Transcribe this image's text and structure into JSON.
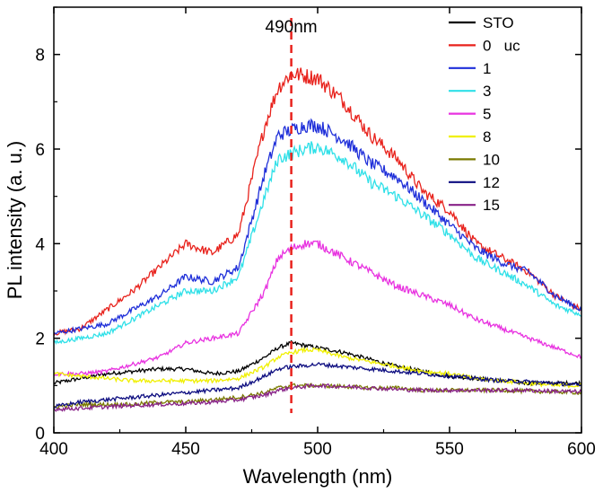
{
  "chart_data": {
    "type": "line",
    "title": "",
    "xlabel": "Wavelength (nm)",
    "ylabel": "PL intensity (a. u.)",
    "xlim": [
      400,
      600
    ],
    "ylim": [
      0,
      9
    ],
    "xticks": [
      400,
      450,
      500,
      550,
      600
    ],
    "yticks": [
      0,
      2,
      4,
      6,
      8
    ],
    "grid": false,
    "legend_position": "top-right",
    "annotation": {
      "label": "490nm",
      "x": 490,
      "color": "#e8221c"
    },
    "x": [
      400,
      410,
      420,
      430,
      440,
      450,
      460,
      470,
      480,
      485,
      490,
      495,
      500,
      510,
      520,
      530,
      540,
      550,
      560,
      570,
      580,
      590,
      600
    ],
    "series": [
      {
        "name": "STO",
        "color": "#000000",
        "values": [
          1.05,
          1.15,
          1.25,
          1.3,
          1.35,
          1.35,
          1.25,
          1.3,
          1.6,
          1.8,
          1.9,
          1.85,
          1.8,
          1.7,
          1.55,
          1.4,
          1.3,
          1.2,
          1.15,
          1.1,
          1.05,
          1.05,
          1.05
        ]
      },
      {
        "name": "0   uc",
        "color": "#e8221c",
        "values": [
          2.1,
          2.2,
          2.6,
          3.0,
          3.5,
          4.0,
          3.8,
          4.2,
          6.5,
          7.3,
          7.6,
          7.55,
          7.5,
          7.0,
          6.3,
          5.8,
          5.1,
          4.7,
          4.0,
          3.7,
          3.4,
          2.9,
          2.6
        ]
      },
      {
        "name": "1",
        "color": "#1f2fd9",
        "values": [
          2.1,
          2.2,
          2.3,
          2.6,
          2.9,
          3.3,
          3.2,
          3.5,
          5.5,
          6.3,
          6.4,
          6.5,
          6.5,
          6.2,
          5.7,
          5.4,
          4.9,
          4.4,
          3.9,
          3.6,
          3.4,
          2.9,
          2.6
        ]
      },
      {
        "name": "3",
        "color": "#2fe0e8",
        "values": [
          1.9,
          2.0,
          2.1,
          2.4,
          2.7,
          3.0,
          3.0,
          3.3,
          5.0,
          5.8,
          5.9,
          6.0,
          6.05,
          5.8,
          5.3,
          5.0,
          4.6,
          4.2,
          3.7,
          3.4,
          3.1,
          2.7,
          2.5
        ]
      },
      {
        "name": "5",
        "color": "#e832e0",
        "values": [
          1.25,
          1.25,
          1.3,
          1.45,
          1.6,
          1.9,
          2.0,
          2.1,
          3.0,
          3.7,
          3.9,
          4.0,
          4.0,
          3.7,
          3.4,
          3.1,
          2.9,
          2.7,
          2.4,
          2.2,
          2.0,
          1.8,
          1.6
        ]
      },
      {
        "name": "8",
        "color": "#f0f000",
        "values": [
          1.25,
          1.2,
          1.15,
          1.1,
          1.1,
          1.1,
          1.1,
          1.15,
          1.4,
          1.6,
          1.7,
          1.75,
          1.75,
          1.6,
          1.5,
          1.4,
          1.3,
          1.25,
          1.15,
          1.1,
          1.05,
          1.0,
          1.0
        ]
      },
      {
        "name": "10",
        "color": "#7a7a00",
        "values": [
          0.55,
          0.6,
          0.6,
          0.6,
          0.65,
          0.65,
          0.7,
          0.75,
          0.85,
          0.95,
          1.0,
          1.0,
          1.0,
          0.98,
          0.95,
          0.95,
          0.9,
          0.9,
          0.9,
          0.9,
          0.88,
          0.87,
          0.85
        ]
      },
      {
        "name": "12",
        "color": "#0d0d80",
        "values": [
          0.55,
          0.65,
          0.7,
          0.75,
          0.8,
          0.85,
          0.9,
          0.95,
          1.2,
          1.35,
          1.4,
          1.42,
          1.45,
          1.4,
          1.35,
          1.3,
          1.25,
          1.2,
          1.15,
          1.1,
          1.08,
          1.05,
          1.0
        ]
      },
      {
        "name": "15",
        "color": "#882288",
        "values": [
          0.5,
          0.52,
          0.55,
          0.58,
          0.6,
          0.62,
          0.65,
          0.7,
          0.8,
          0.9,
          0.95,
          0.98,
          1.0,
          0.98,
          0.95,
          0.92,
          0.9,
          0.9,
          0.9,
          0.9,
          0.9,
          0.88,
          0.87
        ]
      }
    ]
  }
}
